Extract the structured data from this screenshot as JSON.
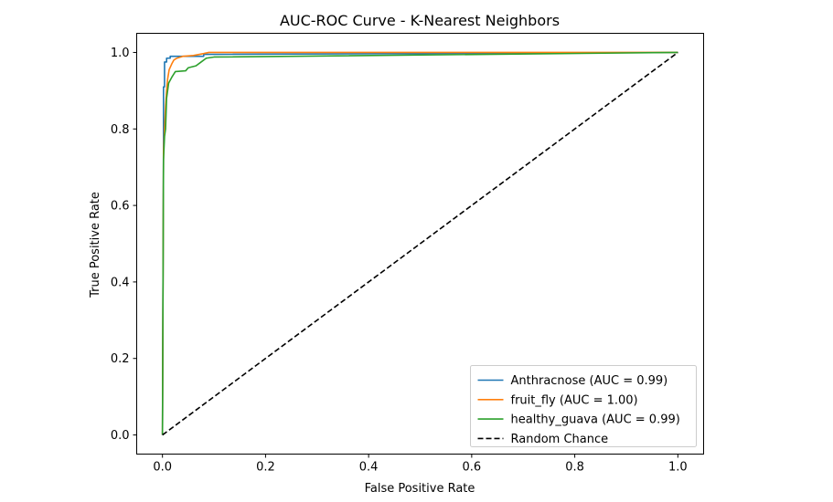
{
  "chart_data": {
    "type": "line",
    "title": "AUC-ROC Curve - K-Nearest Neighbors",
    "xlabel": "False Positive Rate",
    "ylabel": "True Positive Rate",
    "xlim": [
      -0.05,
      1.05
    ],
    "ylim": [
      -0.05,
      1.05
    ],
    "xticks": [
      0.0,
      0.2,
      0.4,
      0.6,
      0.8,
      1.0
    ],
    "yticks": [
      0.0,
      0.2,
      0.4,
      0.6,
      0.8,
      1.0
    ],
    "tick_labels_x": [
      "0.0",
      "0.2",
      "0.4",
      "0.6",
      "0.8",
      "1.0"
    ],
    "tick_labels_y": [
      "0.0",
      "0.2",
      "0.4",
      "0.6",
      "0.8",
      "1.0"
    ],
    "grid": false,
    "legend_position": "lower-right",
    "series": [
      {
        "name": "Anthracnose (AUC = 0.99)",
        "color": "#1f77b4",
        "style": "solid",
        "points": [
          [
            0.0,
            0.0
          ],
          [
            0.002,
            0.75
          ],
          [
            0.002,
            0.91
          ],
          [
            0.004,
            0.91
          ],
          [
            0.004,
            0.975
          ],
          [
            0.008,
            0.975
          ],
          [
            0.008,
            0.985
          ],
          [
            0.015,
            0.985
          ],
          [
            0.015,
            0.99
          ],
          [
            0.08,
            0.99
          ],
          [
            0.08,
            0.995
          ],
          [
            1.0,
            1.0
          ]
        ]
      },
      {
        "name": "fruit_fly (AUC = 1.00)",
        "color": "#ff7f0e",
        "style": "solid",
        "points": [
          [
            0.0,
            0.0
          ],
          [
            0.002,
            0.74
          ],
          [
            0.004,
            0.8
          ],
          [
            0.006,
            0.86
          ],
          [
            0.008,
            0.9
          ],
          [
            0.01,
            0.93
          ],
          [
            0.013,
            0.955
          ],
          [
            0.018,
            0.97
          ],
          [
            0.022,
            0.98
          ],
          [
            0.028,
            0.985
          ],
          [
            0.04,
            0.99
          ],
          [
            0.06,
            0.992
          ],
          [
            0.08,
            0.997
          ],
          [
            0.09,
            1.0
          ],
          [
            1.0,
            1.0
          ]
        ]
      },
      {
        "name": "healthy_guava (AUC = 0.99)",
        "color": "#2ca02c",
        "style": "solid",
        "points": [
          [
            0.0,
            0.0
          ],
          [
            0.002,
            0.72
          ],
          [
            0.004,
            0.78
          ],
          [
            0.006,
            0.8
          ],
          [
            0.008,
            0.88
          ],
          [
            0.012,
            0.92
          ],
          [
            0.018,
            0.935
          ],
          [
            0.025,
            0.95
          ],
          [
            0.045,
            0.952
          ],
          [
            0.05,
            0.96
          ],
          [
            0.065,
            0.965
          ],
          [
            0.075,
            0.975
          ],
          [
            0.085,
            0.985
          ],
          [
            0.1,
            0.988
          ],
          [
            1.0,
            1.0
          ]
        ]
      },
      {
        "name": "Random Chance",
        "color": "#000000",
        "style": "dashed",
        "points": [
          [
            0.0,
            0.0
          ],
          [
            1.0,
            1.0
          ]
        ]
      }
    ]
  }
}
